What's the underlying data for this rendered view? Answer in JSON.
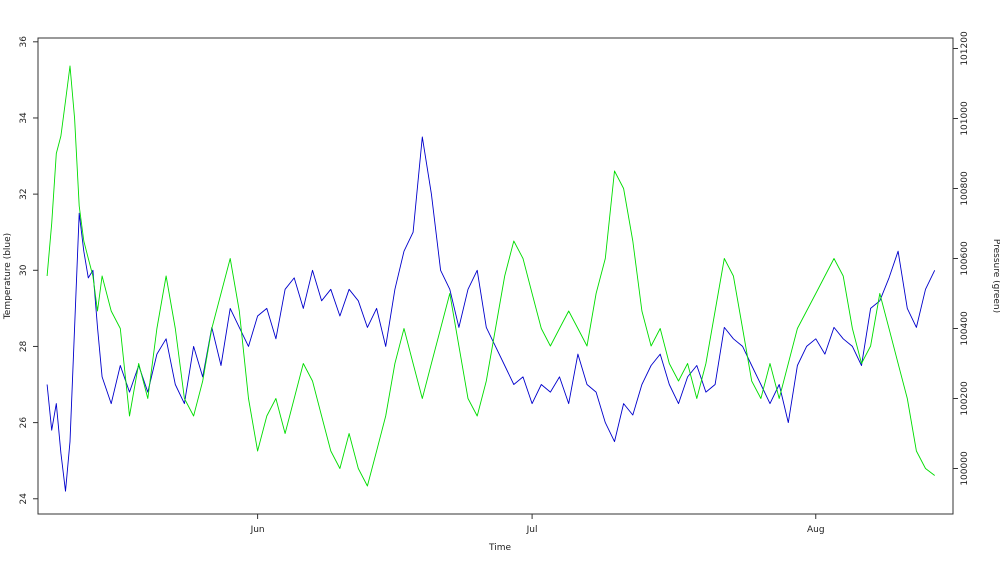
{
  "chart_data": {
    "type": "line",
    "title": "",
    "xlabel": "Time",
    "ylabel": "Temperature (blue)",
    "y2label": "Pressure (green)",
    "x_ticks": [
      "Jun",
      "Jul",
      "Aug"
    ],
    "x_tick_days": [
      16,
      46,
      77
    ],
    "xlim_days": [
      -8,
      92
    ],
    "ylim": [
      23.6,
      36.1
    ],
    "y_ticks": [
      24,
      26,
      28,
      30,
      32,
      34,
      36
    ],
    "y2lim": [
      99870,
      101230
    ],
    "y2_ticks": [
      100000,
      100200,
      100400,
      100600,
      100800,
      101000,
      101200
    ],
    "grid": false,
    "series": [
      {
        "axis": "left",
        "color": "#0000cc",
        "x_days": [
          -7,
          -6.5,
          -6,
          -5.5,
          -5,
          -4.5,
          -4,
          -3.5,
          -3,
          -2.5,
          -2,
          -1.5,
          -1,
          0,
          1,
          2,
          3,
          4,
          5,
          6,
          7,
          8,
          9,
          10,
          11,
          12,
          13,
          14,
          15,
          16,
          17,
          18,
          19,
          20,
          21,
          22,
          23,
          24,
          25,
          26,
          27,
          28,
          29,
          30,
          31,
          32,
          33,
          34,
          35,
          36,
          37,
          38,
          39,
          40,
          41,
          42,
          43,
          44,
          45,
          46,
          47,
          48,
          49,
          50,
          51,
          52,
          53,
          54,
          55,
          56,
          57,
          58,
          59,
          60,
          61,
          62,
          63,
          64,
          65,
          66,
          67,
          68,
          69,
          70,
          71,
          72,
          73,
          74,
          75,
          76,
          77,
          78,
          79,
          80,
          81,
          82,
          83,
          84,
          85,
          86,
          87,
          88,
          89,
          90
        ],
        "values": [
          27.0,
          25.8,
          26.5,
          25.2,
          24.2,
          25.5,
          28.5,
          31.5,
          30.5,
          29.8,
          30.0,
          28.5,
          27.2,
          26.5,
          27.5,
          26.8,
          27.5,
          26.8,
          27.8,
          28.2,
          27.0,
          26.5,
          28.0,
          27.2,
          28.5,
          27.5,
          29.0,
          28.5,
          28.0,
          28.8,
          29.0,
          28.2,
          29.5,
          29.8,
          29.0,
          30.0,
          29.2,
          29.5,
          28.8,
          29.5,
          29.2,
          28.5,
          29.0,
          28.0,
          29.5,
          30.5,
          31.0,
          33.5,
          32.0,
          30.0,
          29.5,
          28.5,
          29.5,
          30.0,
          28.5,
          28.0,
          27.5,
          27.0,
          27.2,
          26.5,
          27.0,
          26.8,
          27.2,
          26.5,
          27.8,
          27.0,
          26.8,
          26.0,
          25.5,
          26.5,
          26.2,
          27.0,
          27.5,
          27.8,
          27.0,
          26.5,
          27.2,
          27.5,
          26.8,
          27.0,
          28.5,
          28.2,
          28.0,
          27.5,
          27.0,
          26.5,
          27.0,
          26.0,
          27.5,
          28.0,
          28.2,
          27.8,
          28.5,
          28.2,
          28.0,
          27.5,
          29.0,
          29.2,
          29.8,
          30.5,
          29.0,
          28.5,
          29.5,
          30.0
        ]
      },
      {
        "axis": "right",
        "color": "#00dd00",
        "x_days": [
          -7,
          -6.5,
          -6,
          -5.5,
          -5,
          -4.5,
          -4,
          -3.5,
          -3,
          -2.5,
          -2,
          -1.5,
          -1,
          0,
          1,
          2,
          3,
          4,
          5,
          6,
          7,
          8,
          9,
          10,
          11,
          12,
          13,
          14,
          15,
          16,
          17,
          18,
          19,
          20,
          21,
          22,
          23,
          24,
          25,
          26,
          27,
          28,
          29,
          30,
          31,
          32,
          33,
          34,
          35,
          36,
          37,
          38,
          39,
          40,
          41,
          42,
          43,
          44,
          45,
          46,
          47,
          48,
          49,
          50,
          51,
          52,
          53,
          54,
          55,
          56,
          57,
          58,
          59,
          60,
          61,
          62,
          63,
          64,
          65,
          66,
          67,
          68,
          69,
          70,
          71,
          72,
          73,
          74,
          75,
          76,
          77,
          78,
          79,
          80,
          81,
          82,
          83,
          84,
          85,
          86,
          87,
          88,
          89,
          90
        ],
        "values": [
          100550,
          100700,
          100900,
          100950,
          101050,
          101150,
          101000,
          100750,
          100650,
          100600,
          100550,
          100450,
          100550,
          100450,
          100400,
          100150,
          100300,
          100200,
          100400,
          100550,
          100400,
          100200,
          100150,
          100250,
          100400,
          100500,
          100600,
          100450,
          100200,
          100050,
          100150,
          100200,
          100100,
          100200,
          100300,
          100250,
          100150,
          100050,
          100000,
          100100,
          100000,
          99950,
          100050,
          100150,
          100300,
          100400,
          100300,
          100200,
          100300,
          100400,
          100500,
          100350,
          100200,
          100150,
          100250,
          100400,
          100550,
          100650,
          100600,
          100500,
          100400,
          100350,
          100400,
          100450,
          100400,
          100350,
          100500,
          100600,
          100850,
          100800,
          100650,
          100450,
          100350,
          100400,
          100300,
          100250,
          100300,
          100200,
          100300,
          100450,
          100600,
          100550,
          100400,
          100250,
          100200,
          100300,
          100200,
          100300,
          100400,
          100450,
          100500,
          100550,
          100600,
          100550,
          100400,
          100300,
          100350,
          100500,
          100400,
          100300,
          100200,
          100050,
          100000,
          99980
        ]
      }
    ]
  }
}
